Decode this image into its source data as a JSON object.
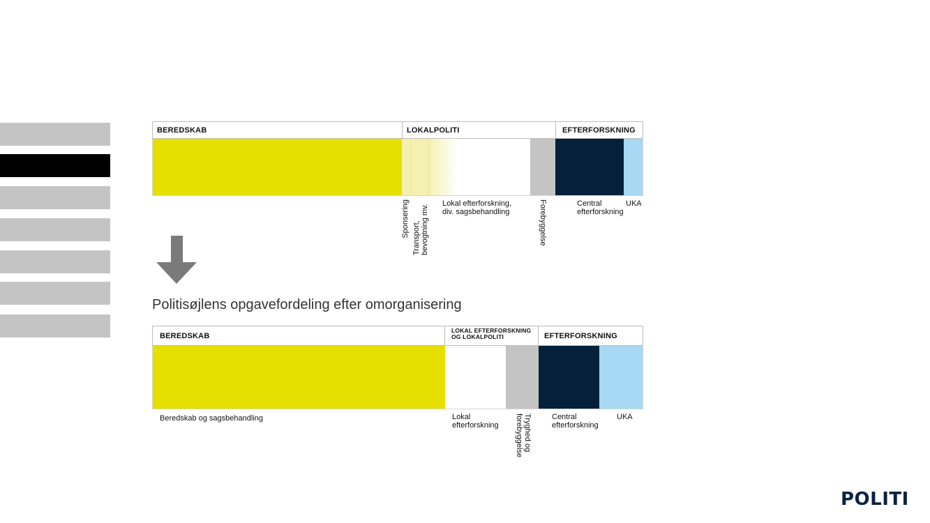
{
  "nav_tabs": [
    {
      "state": "inactive"
    },
    {
      "state": "active"
    },
    {
      "state": "inactive"
    },
    {
      "state": "inactive"
    },
    {
      "state": "inactive"
    },
    {
      "state": "inactive"
    },
    {
      "state": "inactive"
    }
  ],
  "colors": {
    "yellow": "#e5e000",
    "pale_yellow": "#f3f0a8",
    "white": "#ffffff",
    "grey": "#c4c4c4",
    "navy": "#04203a",
    "light_blue": "#a7d8f4"
  },
  "before": {
    "headers": [
      "BEREDSKAB",
      "LOKALPOLITI",
      "EFTERFORSKNING"
    ],
    "labels": {
      "sponsering": "Sponsering",
      "transport": "Transport,\nbevogtning mv.",
      "lokal": "Lokal efterforskning,\ndiv. sagsbehandling",
      "forebyggelse": "Forebyggelse",
      "central": "Central\nefterforskning",
      "uka": "UKA"
    }
  },
  "arrow_icon": "arrow-down-icon",
  "subtitle": "Politisøjlens opgavefordeling efter omorganisering",
  "after": {
    "headers": [
      "BEREDSKAB",
      "LOKAL EFTERFORSKNING\nOG LOKALPOLITI",
      "EFTERFORSKNING"
    ],
    "labels": {
      "beredskab": "Beredskab og sagsbehandling",
      "lokal": "Lokal\nefterforskning",
      "tryghed": "Tryghed og\nforebyggelse",
      "central": "Central\nefterforskning",
      "uka": "UKA"
    }
  },
  "logo": "POLITI"
}
